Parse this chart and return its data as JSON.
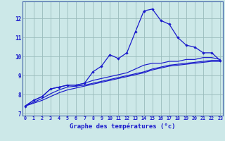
{
  "xlabel": "Graphe des températures (°c)",
  "background_color": "#cce8e8",
  "line_color": "#1a1acc",
  "grid_color": "#99bbbb",
  "x": [
    0,
    1,
    2,
    3,
    4,
    5,
    6,
    7,
    8,
    9,
    10,
    11,
    12,
    13,
    14,
    15,
    16,
    17,
    18,
    19,
    20,
    21,
    22,
    23
  ],
  "series1": [
    7.4,
    7.7,
    7.9,
    8.3,
    8.4,
    8.5,
    8.5,
    8.6,
    9.2,
    9.5,
    10.1,
    9.9,
    10.2,
    11.3,
    12.4,
    12.5,
    11.9,
    11.7,
    11.0,
    10.6,
    10.5,
    10.2,
    10.2,
    9.8
  ],
  "series2": [
    7.4,
    7.7,
    7.9,
    8.3,
    8.4,
    8.5,
    8.5,
    8.6,
    8.75,
    8.85,
    8.95,
    9.05,
    9.15,
    9.35,
    9.55,
    9.65,
    9.65,
    9.75,
    9.75,
    9.85,
    9.85,
    9.95,
    9.95,
    9.85
  ],
  "series3": [
    7.4,
    7.6,
    7.8,
    8.05,
    8.25,
    8.4,
    8.45,
    8.5,
    8.6,
    8.7,
    8.8,
    8.9,
    9.0,
    9.1,
    9.2,
    9.35,
    9.45,
    9.55,
    9.6,
    9.65,
    9.7,
    9.75,
    9.8,
    9.8
  ],
  "series4": [
    7.4,
    7.55,
    7.7,
    7.9,
    8.1,
    8.25,
    8.35,
    8.45,
    8.55,
    8.65,
    8.75,
    8.85,
    8.95,
    9.05,
    9.15,
    9.3,
    9.4,
    9.5,
    9.55,
    9.6,
    9.65,
    9.7,
    9.75,
    9.75
  ],
  "ylim": [
    6.9,
    12.9
  ],
  "xlim": [
    -0.3,
    23.3
  ],
  "yticks": [
    7,
    8,
    9,
    10,
    11,
    12
  ],
  "xticks": [
    0,
    1,
    2,
    3,
    4,
    5,
    6,
    7,
    8,
    9,
    10,
    11,
    12,
    13,
    14,
    15,
    16,
    17,
    18,
    19,
    20,
    21,
    22,
    23
  ],
  "xlabel_fontsize": 6.5,
  "xtick_fontsize": 4.8,
  "ytick_fontsize": 5.5
}
